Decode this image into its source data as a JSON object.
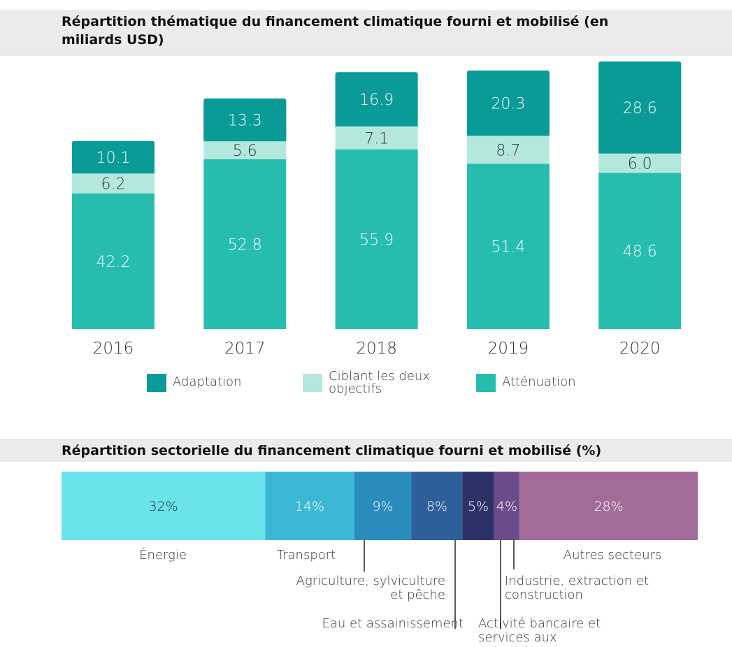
{
  "chart_data": [
    {
      "type": "stacked_bar",
      "title": "Répartition thématique du financement climatique fourni et mobilisé (en miliards USD)",
      "categories": [
        "2016",
        "2017",
        "2018",
        "2019",
        "2020"
      ],
      "series": [
        {
          "name": "Adaptation",
          "color": "#0a9b98",
          "values": [
            10.1,
            13.3,
            16.9,
            20.3,
            28.6
          ],
          "value_labels": [
            "10.1",
            "13.3",
            "16.9",
            "20.3",
            "28.6"
          ]
        },
        {
          "name": "Ciblant les deux objectifs",
          "color": "#b5e8dc",
          "values": [
            6.2,
            5.6,
            7.1,
            8.7,
            6.0
          ],
          "value_labels": [
            "6.2",
            "5.6",
            "7.1",
            "8.7",
            "6.0"
          ]
        },
        {
          "name": "Atténuation",
          "color": "#26bdaf",
          "values": [
            42.2,
            52.8,
            55.9,
            51.4,
            48.6
          ],
          "value_labels": [
            "42.2",
            "52.8",
            "55.9",
            "51.4",
            "48.6"
          ]
        }
      ]
    },
    {
      "type": "stacked_hbar",
      "title": "Répartition sectorielle du financement climatique fourni et mobilisé (%)",
      "categories": [
        "Énergie",
        "Transport",
        "Agriculture, sylviculture et pêche",
        "Eau et assainissement",
        "Activité bancaire et services aux entreprises",
        "Industrie, extraction et construction",
        "Autres secteurs"
      ],
      "values": [
        32,
        14,
        9,
        8,
        5,
        4,
        28
      ],
      "value_labels": [
        "32%",
        "14%",
        "9%",
        "8%",
        "5%",
        "4%",
        "28%"
      ],
      "colors": [
        "#6ae3ea",
        "#3cb8d6",
        "#2a8bbd",
        "#2d5f9a",
        "#2d3266",
        "#6b4b8a",
        "#a36b98"
      ]
    }
  ]
}
